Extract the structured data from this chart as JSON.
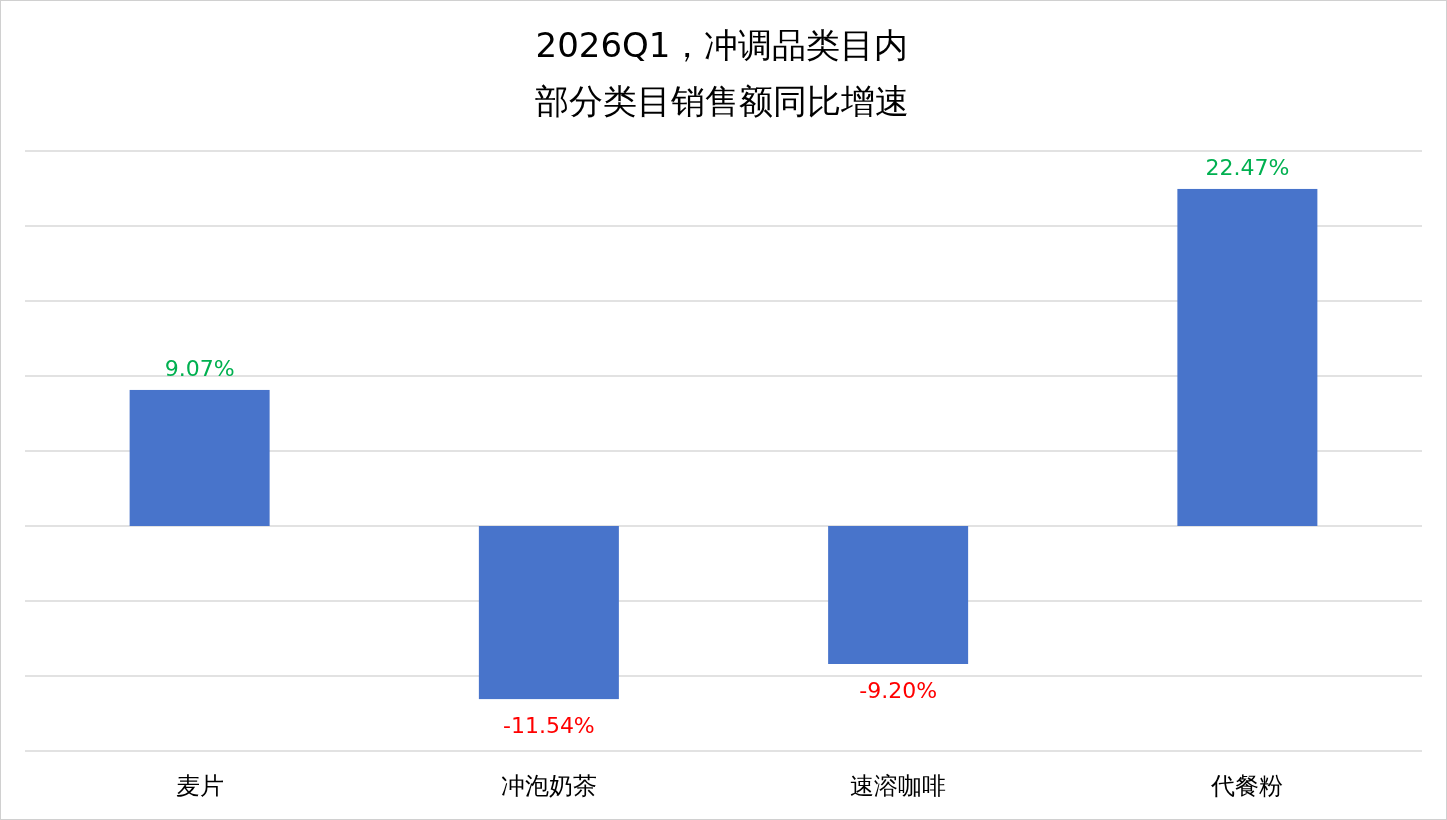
{
  "chart_data": {
    "type": "bar",
    "title": "2026Q1，冲调品类目内",
    "subtitle": "部分类目销售额同比增速",
    "categories": [
      "麦片",
      "冲泡奶茶",
      "速溶咖啡",
      "代餐粉"
    ],
    "values": [
      9.07,
      -11.54,
      -9.2,
      22.47
    ],
    "value_labels": [
      "9.07%",
      "-11.54%",
      "-9.20%",
      "22.47%"
    ],
    "color": "#4874cb",
    "ylim": [
      -15,
      25
    ],
    "yticks": [
      {
        "value": -15,
        "label": null
      },
      {
        "value": -10,
        "label": null
      },
      {
        "value": -5,
        "label": null
      },
      {
        "value": 0,
        "label": null
      },
      {
        "value": 5,
        "label": null
      },
      {
        "value": 10,
        "label": null
      },
      {
        "value": 15,
        "label": null
      },
      {
        "value": 20,
        "label": null
      },
      {
        "value": 25,
        "label": null
      }
    ],
    "grid": "y"
  }
}
